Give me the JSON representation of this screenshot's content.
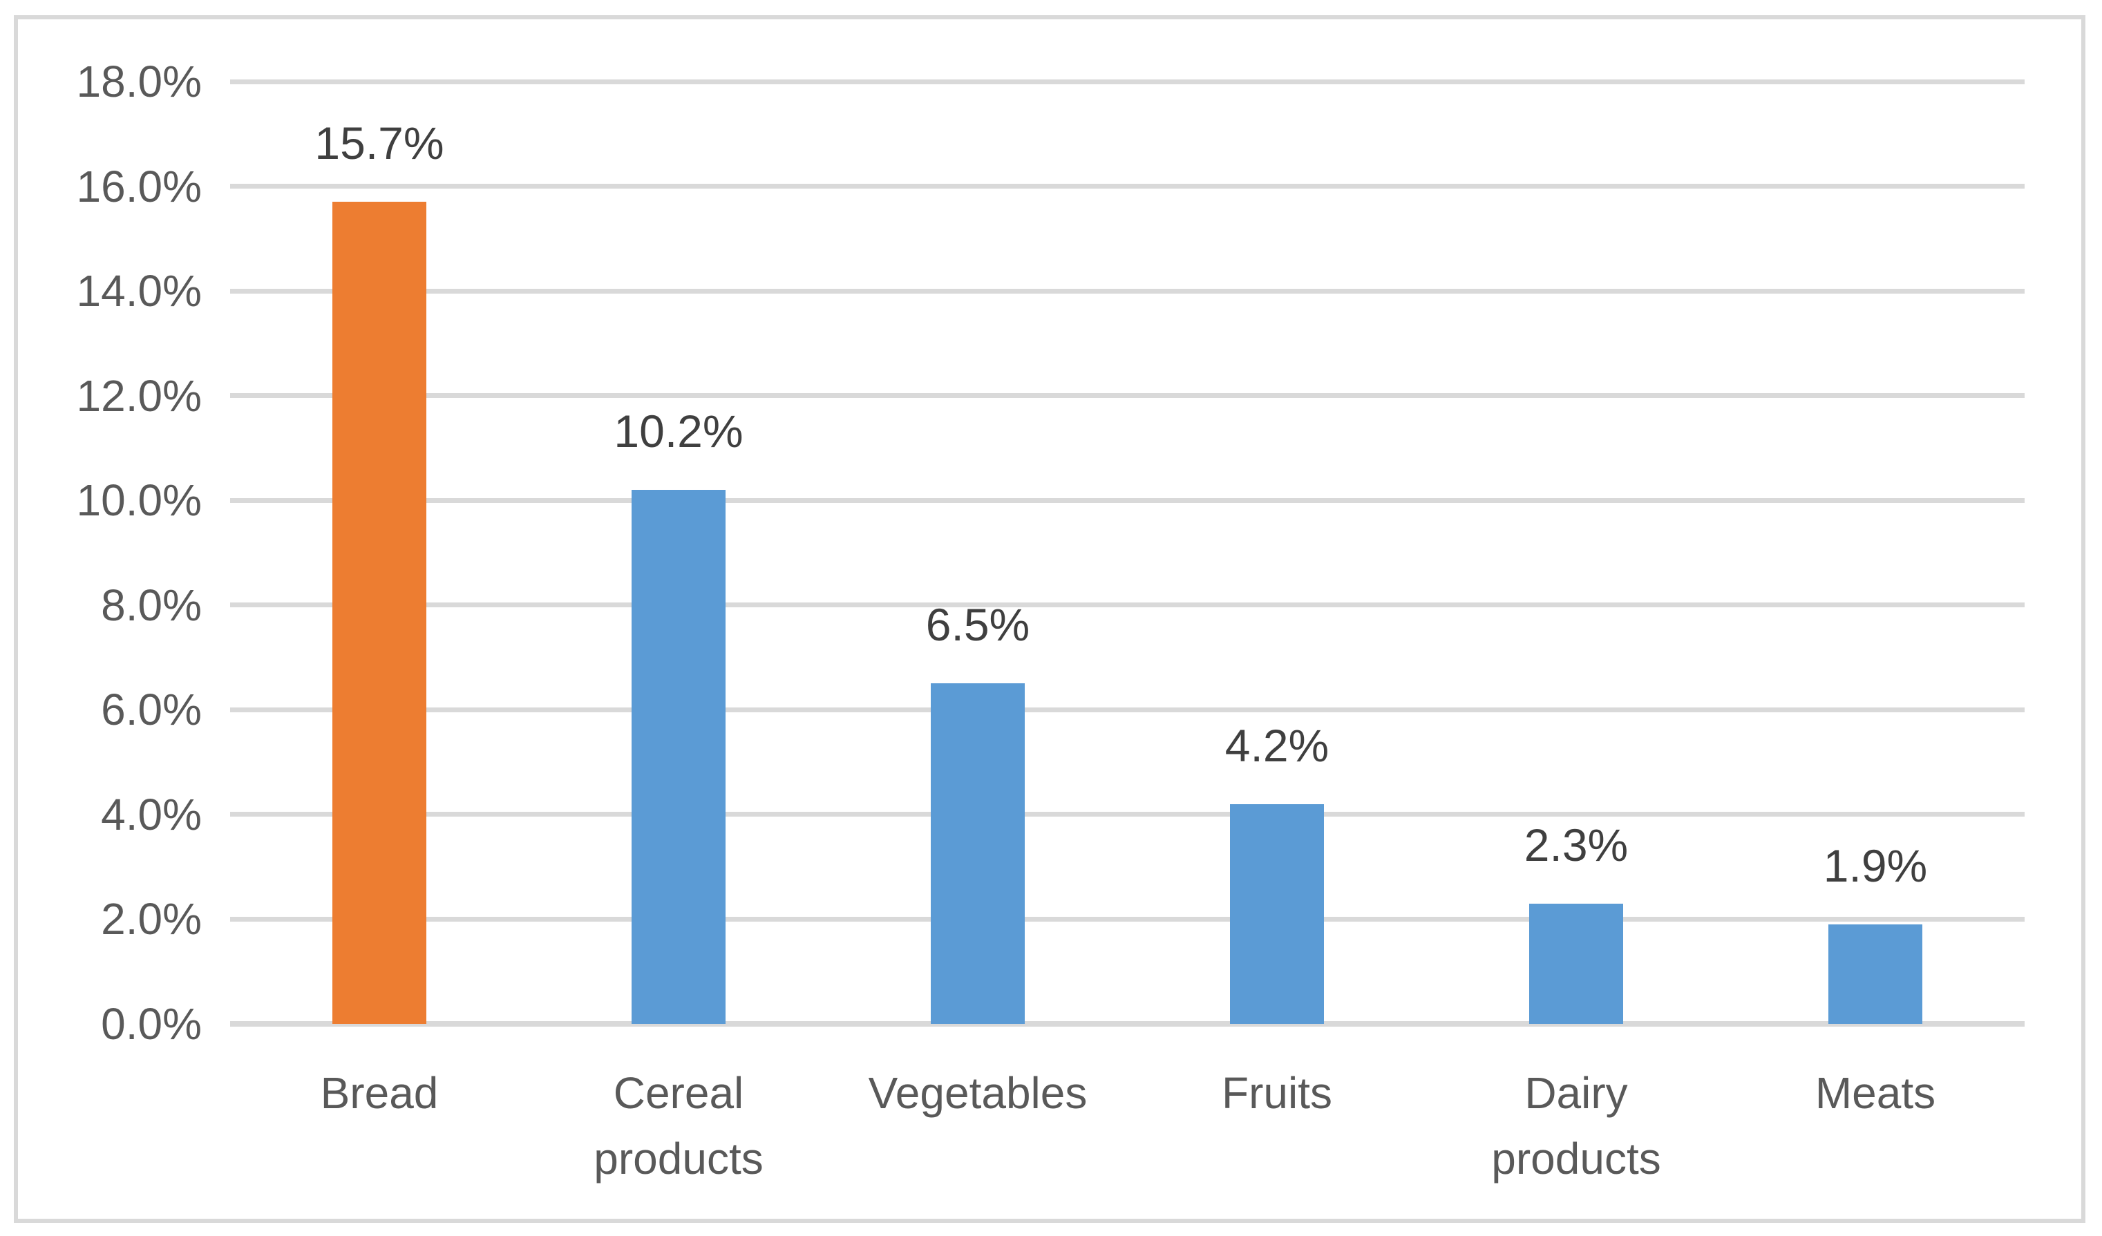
{
  "chart_data": {
    "type": "bar",
    "title": "",
    "xlabel": "",
    "ylabel": "",
    "categories": [
      "Bread",
      "Cereal products",
      "Vegetables",
      "Fruits",
      "Dairy products",
      "Meats"
    ],
    "values": [
      15.7,
      10.2,
      6.5,
      4.2,
      2.3,
      1.9
    ],
    "data_labels": [
      "15.7%",
      "10.2%",
      "6.5%",
      "4.2%",
      "2.3%",
      "1.9%"
    ],
    "bar_colors": [
      "#ED7D31",
      "#5B9BD5",
      "#5B9BD5",
      "#5B9BD5",
      "#5B9BD5",
      "#5B9BD5"
    ],
    "y_axis": {
      "min": 0,
      "max": 18,
      "step": 2,
      "tick_labels": [
        "0.0%",
        "2.0%",
        "4.0%",
        "6.0%",
        "8.0%",
        "10.0%",
        "12.0%",
        "14.0%",
        "16.0%",
        "18.0%"
      ]
    },
    "grid": true,
    "legend": false,
    "layout_hints": {
      "gridlines": "horizontal-only",
      "data_labels_position": "above-bars",
      "highlighted_category": "Bread"
    },
    "colors": {
      "highlight_bar": "#ED7D31",
      "default_bar": "#5B9BD5",
      "gridline": "#D9D9D9",
      "frame_border": "#D9D9D9",
      "tick_text": "#595959",
      "category_text": "#595959",
      "data_label_text": "#3F3F3F",
      "background": "#FFFFFF"
    }
  }
}
